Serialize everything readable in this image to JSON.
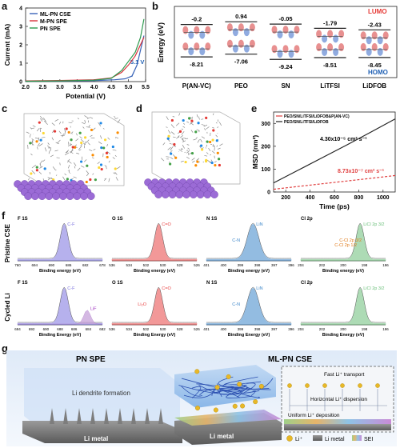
{
  "panels": {
    "a": "a",
    "b": "b",
    "c": "c",
    "d": "d",
    "e": "e",
    "f": "f",
    "g": "g"
  },
  "chart_a": {
    "type": "line",
    "xlabel": "Potential (V)",
    "ylabel": "Current (mA)",
    "xlim": [
      2.0,
      5.5
    ],
    "ylim": [
      0,
      4
    ],
    "xticks": [
      "2.0",
      "2.5",
      "3.0",
      "3.5",
      "4.0",
      "4.5",
      "5.0",
      "5.5"
    ],
    "yticks": [
      "0",
      "1",
      "2",
      "3",
      "4"
    ],
    "annotation": "5.1 V",
    "legend": "top-left",
    "series": [
      {
        "name": "ML-PN CSE",
        "color": "#3a64b8",
        "x": [
          2.0,
          3.0,
          4.0,
          4.6,
          4.9,
          5.1,
          5.25,
          5.35,
          5.45
        ],
        "y": [
          0.02,
          0.03,
          0.05,
          0.1,
          0.15,
          0.3,
          0.9,
          1.7,
          2.5
        ]
      },
      {
        "name": "M-PN SPE",
        "color": "#d9323c",
        "x": [
          2.0,
          3.0,
          4.0,
          4.5,
          4.8,
          5.0,
          5.2,
          5.35,
          5.45
        ],
        "y": [
          0.04,
          0.06,
          0.1,
          0.2,
          0.5,
          0.9,
          1.4,
          2.0,
          2.4
        ]
      },
      {
        "name": "PN SPE",
        "color": "#2e9a4e",
        "x": [
          2.0,
          3.0,
          4.0,
          4.5,
          4.8,
          5.0,
          5.2,
          5.35,
          5.45
        ],
        "y": [
          0.02,
          0.04,
          0.08,
          0.18,
          0.6,
          1.1,
          1.6,
          2.4,
          3.4
        ]
      }
    ]
  },
  "chart_b": {
    "type": "scatter",
    "ylabel": "Energy (eV)",
    "lumo_label": "LUMO",
    "homo_label": "HOMO",
    "categories": [
      "P(AN-VC)",
      "PEO",
      "SN",
      "LiTFSI",
      "LiDFOB"
    ],
    "lumo": [
      "-0.2",
      "0.94",
      "-0.05",
      "-1.79",
      "-2.43"
    ],
    "homo": [
      "-8.21",
      "-7.06",
      "-9.24",
      "-8.51",
      "-8.45"
    ]
  },
  "panel_c": {},
  "panel_d": {},
  "chart_e": {
    "type": "line",
    "xlabel": "Time (ps)",
    "ylabel": "MSD (nm²)",
    "xticks": [
      "200",
      "400",
      "600",
      "800",
      "1000"
    ],
    "yticks": [
      "0",
      "100",
      "200",
      "300"
    ],
    "xlim": [
      100,
      1100
    ],
    "ylim": [
      0,
      350
    ],
    "legend": "top-left",
    "series": [
      {
        "name": "PEO/SN/LiTFSI/LiDFOB&P(AN-VC)",
        "color": "#e04040",
        "x": [
          100,
          300,
          500,
          700,
          900,
          1100
        ],
        "y": [
          12,
          24,
          36,
          48,
          60,
          72
        ]
      },
      {
        "name": "PEO/SN/LiTFSI/LiDFOB",
        "color": "#222222",
        "x": [
          100,
          300,
          500,
          700,
          900,
          1100
        ],
        "y": [
          40,
          95,
          150,
          205,
          262,
          320
        ]
      }
    ],
    "annot_black": "4.30x10⁻⁵ cm² s⁻¹",
    "annot_red": "8.73x10⁻⁷ cm² s⁻¹"
  },
  "panel_f": {
    "row_labels": [
      "Pristine CSE",
      "Cycled Li"
    ],
    "xlabel": "Binding energy (eV)",
    "xlabel_cycled": "Binding Energy (eV)",
    "pristine": [
      {
        "title": "F 1S",
        "ticks": [
          "760",
          "694",
          "690",
          "686",
          "682",
          "678"
        ],
        "peaks": [
          "C-F"
        ],
        "color": "#7b72df"
      },
      {
        "title": "O 1S",
        "ticks": [
          "536",
          "534",
          "532",
          "530",
          "528",
          "526"
        ],
        "peaks": [
          "C=O"
        ],
        "color": "#e84444"
      },
      {
        "title": "N 1S",
        "ticks": [
          "401",
          "400",
          "399",
          "398",
          "397",
          "396"
        ],
        "peaks": [
          "LiN",
          "C-N"
        ],
        "color": "#3c86c9"
      },
      {
        "title": "Cl 2p",
        "ticks": [
          "204",
          "202",
          "200",
          "198",
          "196"
        ],
        "peaks": [
          "LiCl 2p 3/2",
          "C-Cl 2p 3/2",
          "C-Cl 2p 1/2"
        ],
        "color": "#6bbf7a"
      }
    ],
    "cycled": [
      {
        "title": "F 1S",
        "ticks": [
          "694",
          "692",
          "690",
          "688",
          "686",
          "684",
          "682"
        ],
        "peaks": [
          "C-F",
          "LiF"
        ],
        "color": "#7b72df"
      },
      {
        "title": "O 1S",
        "ticks": [
          "536",
          "534",
          "532",
          "530",
          "528",
          "526"
        ],
        "peaks": [
          "C=O",
          "Li₂O"
        ],
        "color": "#e84444"
      },
      {
        "title": "N 1S",
        "ticks": [
          "401",
          "400",
          "399",
          "398",
          "397",
          "396"
        ],
        "peaks": [
          "LiN",
          "C-N"
        ],
        "color": "#3c86c9"
      },
      {
        "title": "Cl 2p",
        "ticks": [
          "204",
          "202",
          "200",
          "198",
          "196"
        ],
        "peaks": [
          "LiCl 2p 3/2"
        ],
        "color": "#6bbf7a"
      }
    ]
  },
  "panel_g": {
    "left_title": "PN SPE",
    "right_title": "ML-PN CSE",
    "dendrite": "Li dendrite formation",
    "li_metal_left": "Li metal",
    "li_metal_right": "Li metal",
    "fast": "Fast Li⁺ transport",
    "horizontal": "Horizontal Li⁺ dispersion",
    "uniform": "Uniform Li⁺ deposition",
    "legend": [
      "Li⁺",
      "Li metal",
      "SEI"
    ]
  }
}
